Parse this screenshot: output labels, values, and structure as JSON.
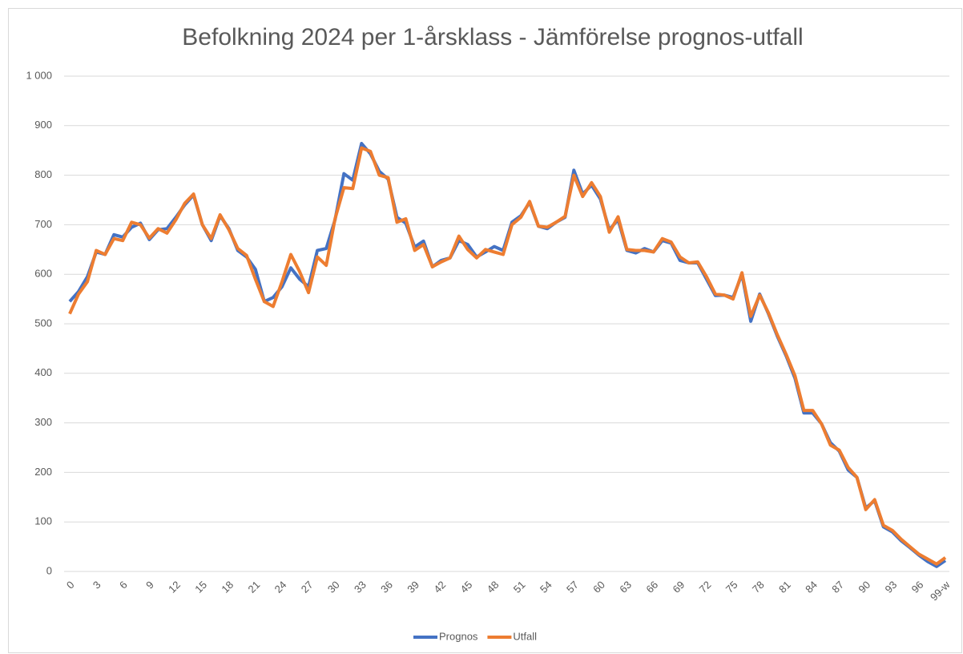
{
  "chart_data": {
    "type": "line",
    "title": "Befolkning 2024 per 1-årsklass - Jämförelse prognos-utfall",
    "categories": [
      "0",
      null,
      null,
      "3",
      null,
      null,
      "6",
      null,
      null,
      "9",
      null,
      null,
      "12",
      null,
      null,
      "15",
      null,
      null,
      "18",
      null,
      null,
      "21",
      null,
      null,
      "24",
      null,
      null,
      "27",
      null,
      null,
      "30",
      null,
      null,
      "33",
      null,
      null,
      "36",
      null,
      null,
      "39",
      null,
      null,
      "42",
      null,
      null,
      "45",
      null,
      null,
      "48",
      null,
      null,
      "51",
      null,
      null,
      "54",
      null,
      null,
      "57",
      null,
      null,
      "60",
      null,
      null,
      "63",
      null,
      null,
      "66",
      null,
      null,
      "69",
      null,
      null,
      "72",
      null,
      null,
      "75",
      null,
      null,
      "78",
      null,
      null,
      "81",
      null,
      null,
      "84",
      null,
      null,
      "87",
      null,
      null,
      "90",
      null,
      null,
      "93",
      null,
      null,
      "96",
      null,
      null,
      "99-w"
    ],
    "series": [
      {
        "name": "Prognos",
        "color": "#4472c4",
        "values": [
          545,
          565,
          595,
          645,
          640,
          680,
          675,
          695,
          703,
          670,
          690,
          692,
          715,
          740,
          760,
          700,
          668,
          718,
          692,
          648,
          635,
          610,
          545,
          553,
          575,
          613,
          590,
          575,
          648,
          652,
          710,
          803,
          790,
          864,
          843,
          808,
          792,
          715,
          703,
          655,
          667,
          615,
          628,
          633,
          668,
          660,
          635,
          645,
          656,
          648,
          705,
          718,
          745,
          697,
          692,
          705,
          715,
          810,
          762,
          780,
          752,
          690,
          710,
          648,
          643,
          652,
          645,
          668,
          663,
          628,
          623,
          623,
          590,
          557,
          558,
          553,
          600,
          505,
          560,
          520,
          475,
          435,
          390,
          320,
          320,
          298,
          260,
          243,
          205,
          190,
          128,
          143,
          90,
          80,
          62,
          48,
          33,
          20,
          10,
          22
        ]
      },
      {
        "name": "Utfall",
        "color": "#ed7d31",
        "values": [
          520,
          560,
          585,
          648,
          640,
          672,
          668,
          705,
          700,
          673,
          692,
          683,
          710,
          743,
          762,
          700,
          672,
          720,
          690,
          652,
          638,
          590,
          545,
          535,
          585,
          640,
          605,
          563,
          635,
          618,
          712,
          775,
          773,
          855,
          848,
          800,
          795,
          705,
          712,
          648,
          660,
          615,
          625,
          633,
          677,
          650,
          633,
          650,
          645,
          640,
          700,
          715,
          747,
          697,
          695,
          705,
          717,
          800,
          757,
          785,
          757,
          685,
          716,
          650,
          648,
          648,
          645,
          672,
          665,
          635,
          623,
          625,
          595,
          560,
          558,
          550,
          603,
          515,
          558,
          522,
          478,
          438,
          395,
          325,
          325,
          298,
          255,
          245,
          210,
          190,
          125,
          145,
          93,
          83,
          65,
          50,
          35,
          25,
          15,
          28
        ]
      }
    ],
    "ylim": [
      0,
      1000
    ],
    "yticks": [
      0,
      100,
      200,
      300,
      400,
      500,
      600,
      700,
      800,
      900,
      {
        "value": 1000,
        "label": "1 000"
      }
    ],
    "grid": true,
    "legend": "bottom"
  }
}
